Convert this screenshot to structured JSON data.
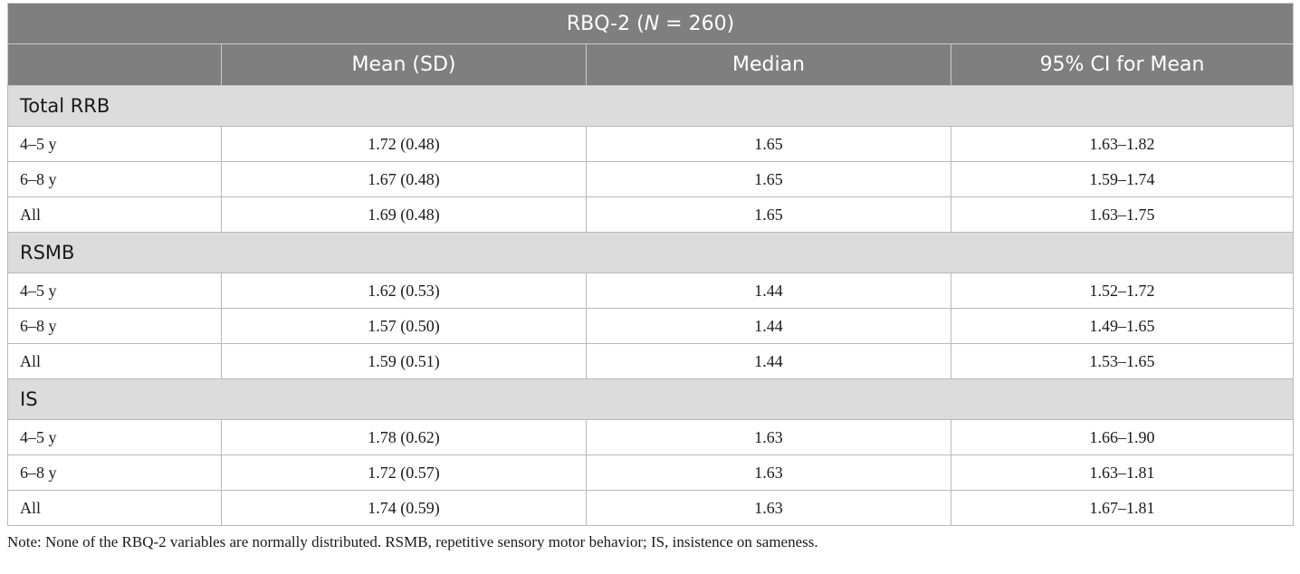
{
  "table": {
    "title_prefix": "RBQ-2 (",
    "title_n": "N",
    "title_suffix": " = 260)",
    "columns": [
      "",
      "Mean (SD)",
      "Median",
      "95% CI for Mean"
    ],
    "sections": [
      {
        "name": "Total RRB",
        "rows": [
          {
            "label": "4–5 y",
            "mean_sd": "1.72 (0.48)",
            "median": "1.65",
            "ci": "1.63–1.82"
          },
          {
            "label": "6–8 y",
            "mean_sd": "1.67 (0.48)",
            "median": "1.65",
            "ci": "1.59–1.74"
          },
          {
            "label": "All",
            "mean_sd": "1.69 (0.48)",
            "median": "1.65",
            "ci": "1.63–1.75"
          }
        ]
      },
      {
        "name": "RSMB",
        "rows": [
          {
            "label": "4–5 y",
            "mean_sd": "1.62 (0.53)",
            "median": "1.44",
            "ci": "1.52–1.72"
          },
          {
            "label": "6–8 y",
            "mean_sd": "1.57 (0.50)",
            "median": "1.44",
            "ci": "1.49–1.65"
          },
          {
            "label": "All",
            "mean_sd": "1.59 (0.51)",
            "median": "1.44",
            "ci": "1.53–1.65"
          }
        ]
      },
      {
        "name": "IS",
        "rows": [
          {
            "label": "4–5 y",
            "mean_sd": "1.78 (0.62)",
            "median": "1.63",
            "ci": "1.66–1.90"
          },
          {
            "label": "6–8 y",
            "mean_sd": "1.72 (0.57)",
            "median": "1.63",
            "ci": "1.63–1.81"
          },
          {
            "label": "All",
            "mean_sd": "1.74 (0.59)",
            "median": "1.63",
            "ci": "1.67–1.81"
          }
        ]
      }
    ]
  },
  "note": "Note: None of the RBQ-2 variables are normally distributed. RSMB, repetitive sensory motor behavior; IS, insistence on sameness."
}
